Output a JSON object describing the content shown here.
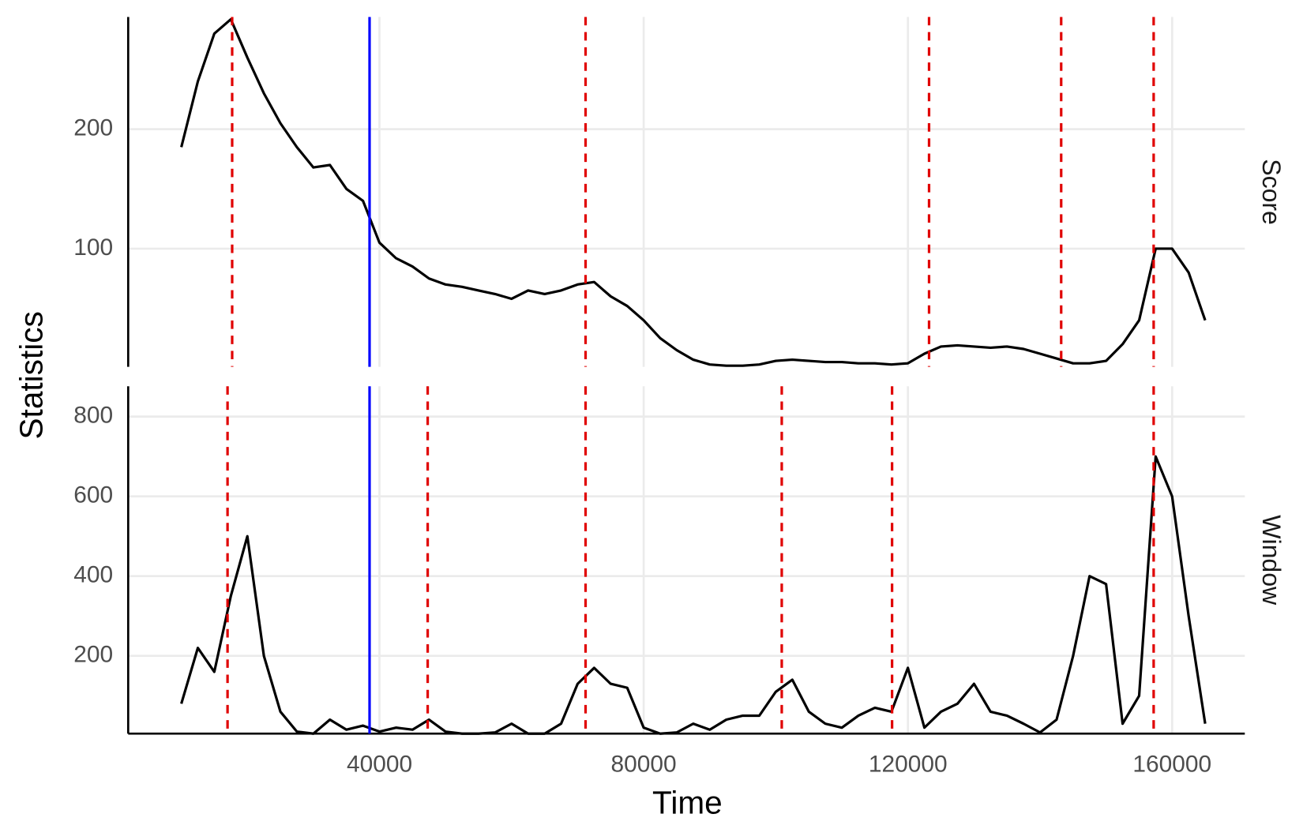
{
  "chart_data": [
    {
      "type": "line",
      "strip": "Score",
      "y_label": "Statistics",
      "color": "#000000",
      "grid": true,
      "x": [
        10000,
        12500,
        15000,
        17500,
        20000,
        22500,
        25000,
        27500,
        30000,
        32500,
        35000,
        37500,
        40000,
        42500,
        45000,
        47500,
        50000,
        52500,
        55000,
        57500,
        60000,
        62500,
        65000,
        67500,
        70000,
        72500,
        75000,
        77500,
        80000,
        82500,
        85000,
        87500,
        90000,
        92500,
        95000,
        97500,
        100000,
        102500,
        105000,
        107500,
        110000,
        112500,
        115000,
        117500,
        120000,
        122500,
        125000,
        127500,
        130000,
        132500,
        135000,
        137500,
        140000,
        142500,
        145000,
        147500,
        150000,
        152500,
        155000,
        157500,
        160000,
        162500,
        165000
      ],
      "values": [
        185,
        240,
        280,
        292,
        260,
        230,
        205,
        185,
        168,
        170,
        150,
        140,
        105,
        92,
        85,
        75,
        70,
        68,
        65,
        62,
        58,
        65,
        62,
        65,
        70,
        72,
        60,
        52,
        40,
        25,
        15,
        7,
        3,
        2,
        2,
        3,
        6,
        7,
        6,
        5,
        5,
        4,
        4,
        3,
        4,
        12,
        18,
        19,
        18,
        17,
        18,
        16,
        12,
        8,
        4,
        4,
        6,
        20,
        40,
        100,
        100,
        80,
        40
      ],
      "xlim": [
        1960,
        171000
      ],
      "xticks": [
        40000,
        80000,
        120000,
        160000
      ],
      "ylim": [
        1,
        294
      ],
      "yticks": [
        100,
        200
      ],
      "vlines": [
        {
          "x": 38500,
          "color": "#0000ff",
          "dash": false
        },
        {
          "x": 17700,
          "color": "#e00000",
          "dash": true
        },
        {
          "x": 71200,
          "color": "#e00000",
          "dash": true
        },
        {
          "x": 123200,
          "color": "#e00000",
          "dash": true
        },
        {
          "x": 143200,
          "color": "#e00000",
          "dash": true
        },
        {
          "x": 157200,
          "color": "#e00000",
          "dash": true
        }
      ]
    },
    {
      "type": "line",
      "strip": "Window",
      "x_label": "Time",
      "color": "#000000",
      "grid": true,
      "x": [
        10000,
        12500,
        15000,
        17500,
        20000,
        22500,
        25000,
        27500,
        30000,
        32500,
        35000,
        37500,
        40000,
        42500,
        45000,
        47500,
        50000,
        52500,
        55000,
        57500,
        60000,
        62500,
        65000,
        67500,
        70000,
        72500,
        75000,
        77500,
        80000,
        82500,
        85000,
        87500,
        90000,
        92500,
        95000,
        97500,
        100000,
        102500,
        105000,
        107500,
        110000,
        112500,
        115000,
        117500,
        120000,
        122500,
        125000,
        127500,
        130000,
        132500,
        135000,
        137500,
        140000,
        142500,
        145000,
        147500,
        150000,
        152500,
        155000,
        157500,
        160000,
        162500,
        165000
      ],
      "values": [
        80,
        220,
        160,
        350,
        500,
        200,
        60,
        10,
        5,
        40,
        15,
        25,
        10,
        20,
        15,
        40,
        10,
        5,
        5,
        8,
        30,
        5,
        5,
        30,
        130,
        170,
        130,
        120,
        20,
        5,
        8,
        30,
        15,
        40,
        50,
        50,
        110,
        140,
        60,
        30,
        20,
        50,
        70,
        60,
        170,
        20,
        60,
        80,
        130,
        60,
        50,
        30,
        8,
        40,
        200,
        400,
        380,
        30,
        100,
        700,
        600,
        300,
        30
      ],
      "xlim": [
        1960,
        171000
      ],
      "xticks": [
        40000,
        80000,
        120000,
        160000
      ],
      "ylim": [
        5,
        876
      ],
      "yticks": [
        200,
        400,
        600,
        800
      ],
      "vlines": [
        {
          "x": 38500,
          "color": "#0000ff",
          "dash": false
        },
        {
          "x": 17000,
          "color": "#e00000",
          "dash": true
        },
        {
          "x": 47300,
          "color": "#e00000",
          "dash": true
        },
        {
          "x": 71200,
          "color": "#e00000",
          "dash": true
        },
        {
          "x": 100900,
          "color": "#e00000",
          "dash": true
        },
        {
          "x": 117600,
          "color": "#e00000",
          "dash": true
        },
        {
          "x": 157200,
          "color": "#e00000",
          "dash": true
        }
      ]
    }
  ]
}
